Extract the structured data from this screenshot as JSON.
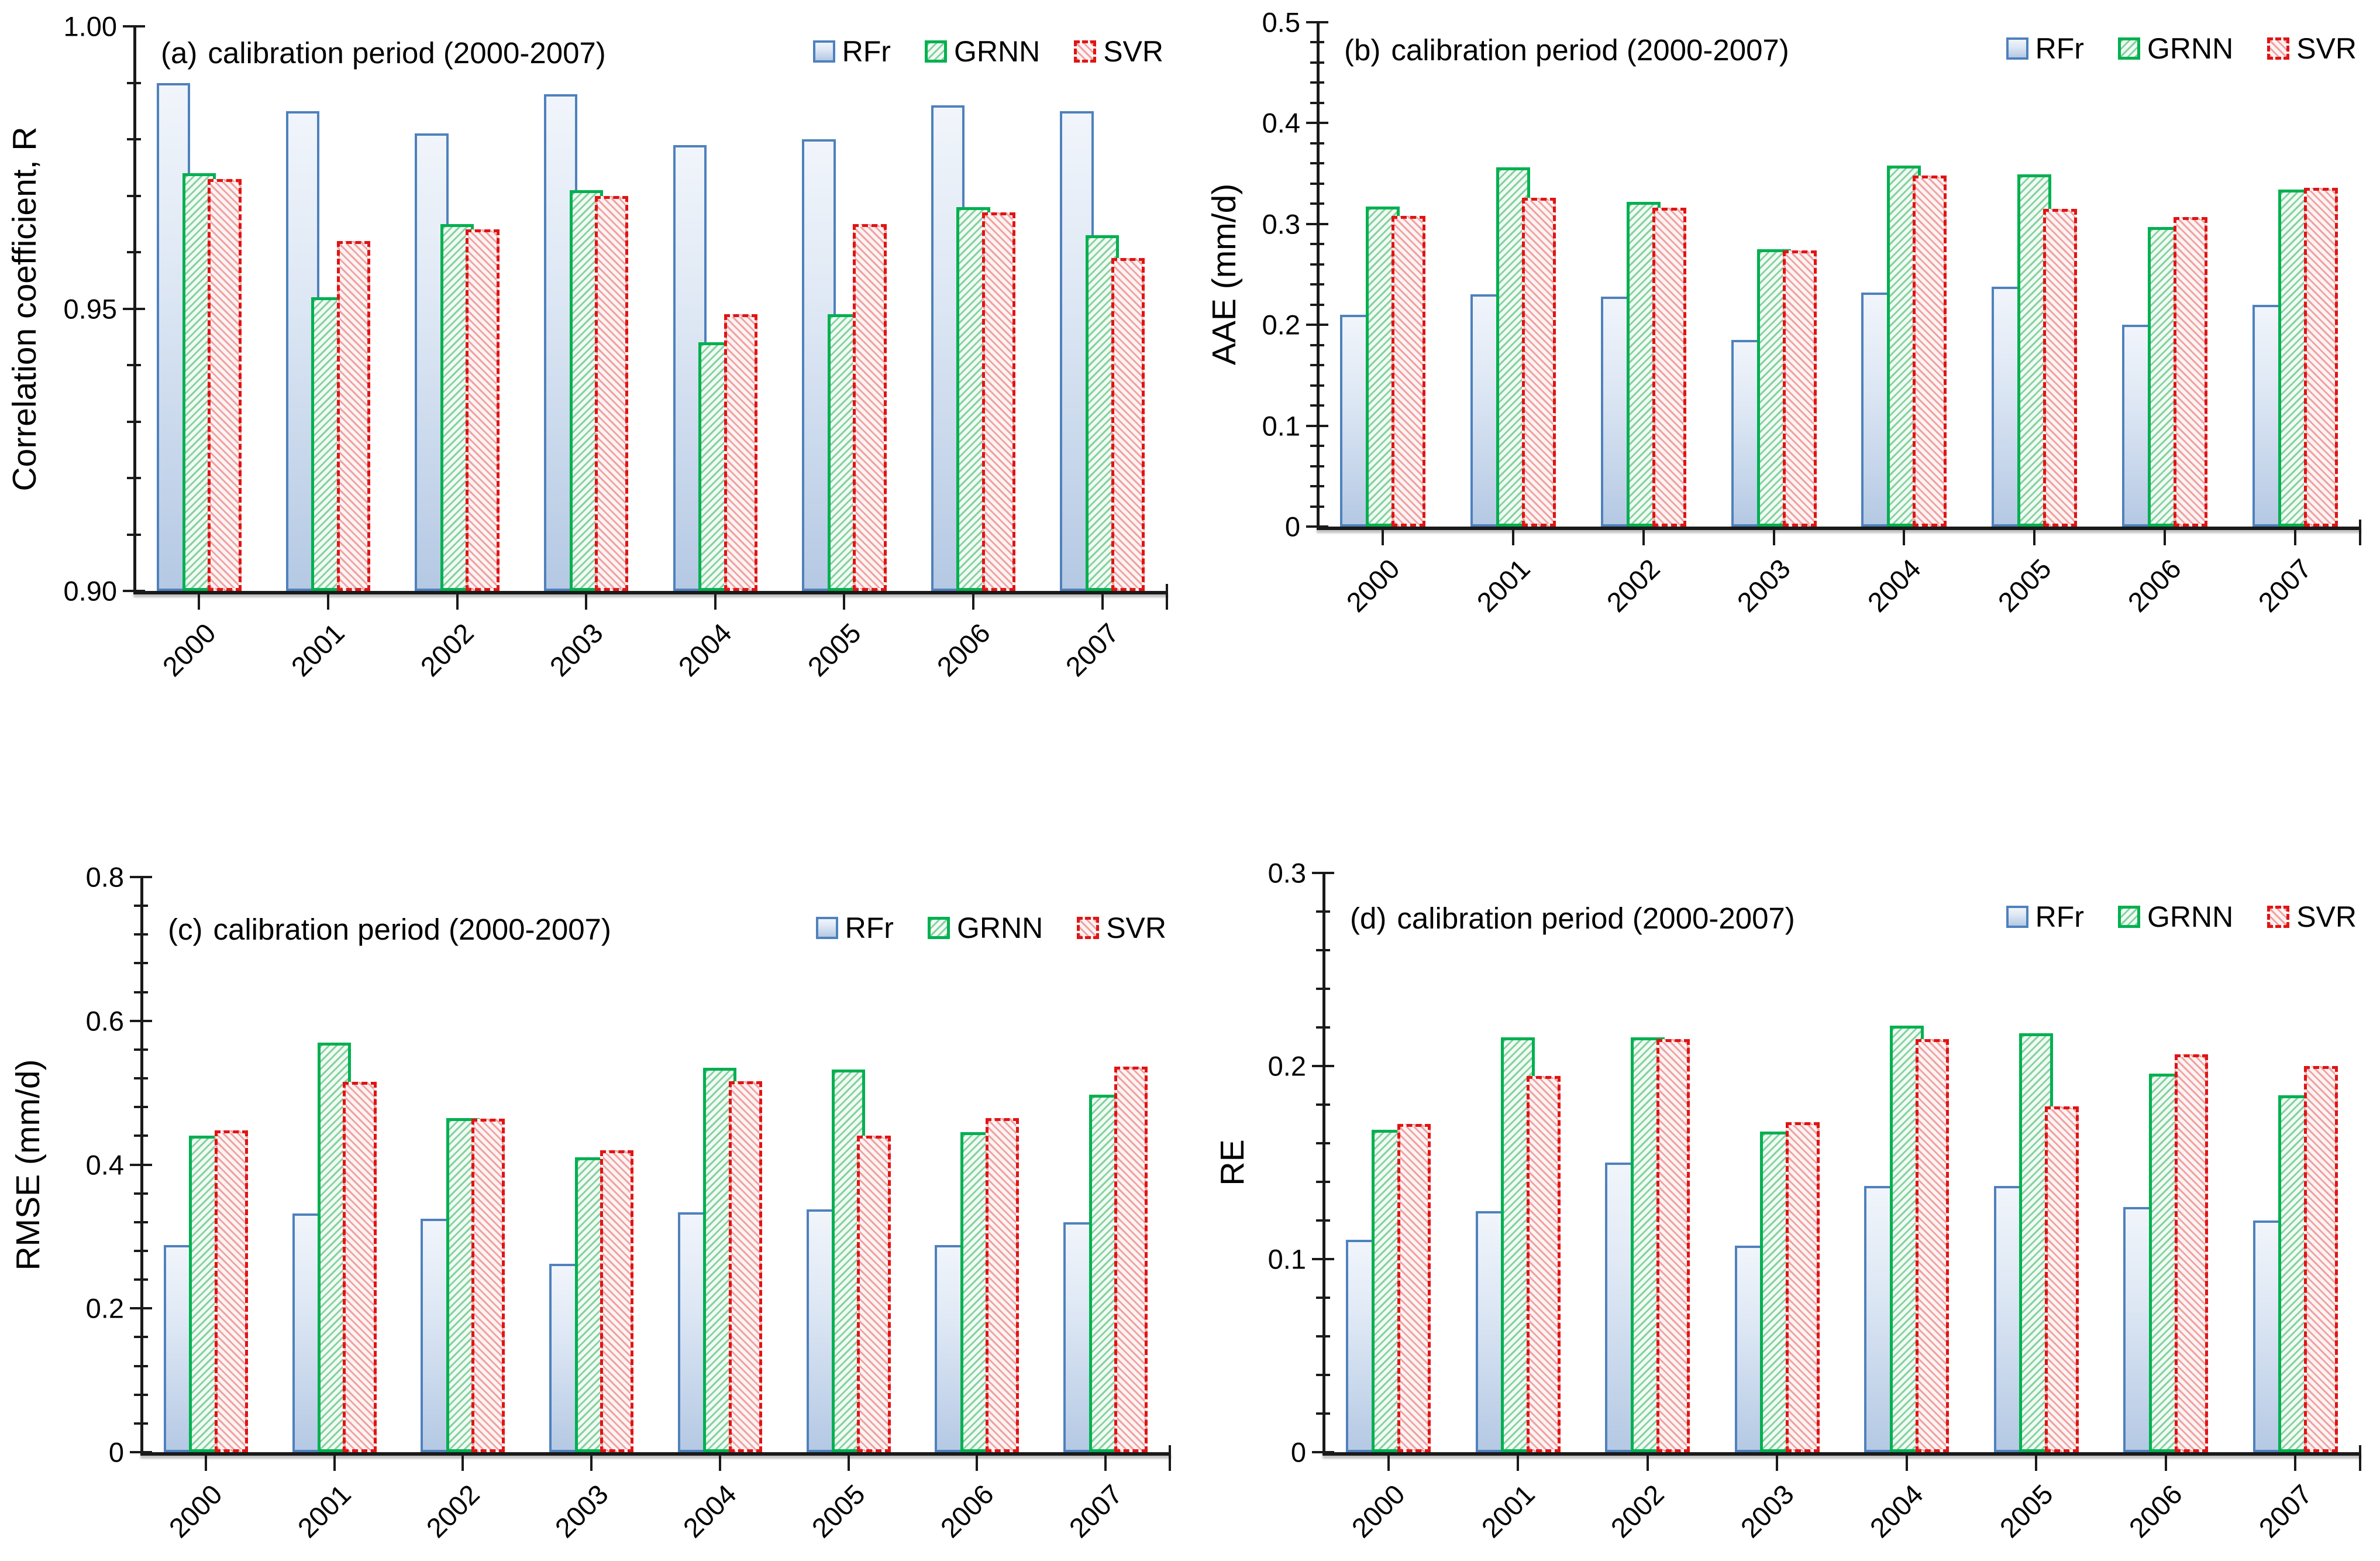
{
  "figure": {
    "background": "#ffffff",
    "text_color": "#000000",
    "axis_color": "#1a1a1a"
  },
  "series_styles": [
    {
      "name": "RFr",
      "border": "#4f81bd",
      "border_style": "solid",
      "fill": "blue-gradient",
      "fill_top": "#f1f5fb",
      "fill_bottom": "#b5c9e4"
    },
    {
      "name": "GRNN",
      "border": "#00b050",
      "border_style": "solid",
      "fill": "green-diagonal-hatch",
      "hatch_color": "#86d19e",
      "hatch_bg": "#f1faf4"
    },
    {
      "name": "SVR",
      "border": "#e01414",
      "border_style": "dashed",
      "fill": "red-diagonal-hatch",
      "hatch_color": "#efa2a2",
      "hatch_bg": "#fdf3f3"
    }
  ],
  "chart_data": [
    {
      "panel": "a",
      "type": "bar",
      "label": "(a)",
      "title": "calibration period (2000-2007)",
      "ylabel": "Correlation coefficient, R",
      "xlabel": "",
      "ylim": [
        0.9,
        1.0
      ],
      "ytick_values": [
        0.9,
        0.95,
        1.0
      ],
      "ytick_labels": [
        "0.90",
        "0.95",
        "1.00"
      ],
      "minor_tick_step": 0.01,
      "grid": false,
      "legend_position": "top-right",
      "categories": [
        "2000",
        "2001",
        "2002",
        "2003",
        "2004",
        "2005",
        "2006",
        "2007"
      ],
      "series": [
        {
          "name": "RFr",
          "values": [
            0.99,
            0.985,
            0.981,
            0.988,
            0.979,
            0.98,
            0.986,
            0.985
          ]
        },
        {
          "name": "GRNN",
          "values": [
            0.974,
            0.952,
            0.965,
            0.971,
            0.944,
            0.949,
            0.968,
            0.963
          ]
        },
        {
          "name": "SVR",
          "values": [
            0.973,
            0.962,
            0.964,
            0.97,
            0.949,
            0.965,
            0.967,
            0.959
          ]
        }
      ]
    },
    {
      "panel": "b",
      "type": "bar",
      "label": "(b)",
      "title": "calibration period (2000-2007)",
      "ylabel": "AAE (mm/d)",
      "xlabel": "",
      "ylim": [
        0,
        0.5
      ],
      "ytick_values": [
        0,
        0.1,
        0.2,
        0.3,
        0.4,
        0.5
      ],
      "ytick_labels": [
        "0",
        "0.1",
        "0.2",
        "0.3",
        "0.4",
        "0.5"
      ],
      "minor_tick_step": 0.02,
      "grid": false,
      "legend_position": "top-right",
      "categories": [
        "2000",
        "2001",
        "2002",
        "2003",
        "2004",
        "2005",
        "2006",
        "2007"
      ],
      "series": [
        {
          "name": "RFr",
          "values": [
            0.21,
            0.23,
            0.228,
            0.185,
            0.232,
            0.238,
            0.2,
            0.22
          ]
        },
        {
          "name": "GRNN",
          "values": [
            0.317,
            0.356,
            0.322,
            0.275,
            0.358,
            0.349,
            0.297,
            0.334
          ]
        },
        {
          "name": "SVR",
          "values": [
            0.308,
            0.326,
            0.316,
            0.274,
            0.348,
            0.315,
            0.307,
            0.336
          ]
        }
      ]
    },
    {
      "panel": "c",
      "type": "bar",
      "label": "(c)",
      "title": "calibration period (2000-2007)",
      "ylabel": "RMSE (mm/d)",
      "xlabel": "",
      "ylim": [
        0,
        0.8
      ],
      "ytick_values": [
        0,
        0.2,
        0.4,
        0.6,
        0.8
      ],
      "ytick_labels": [
        "0",
        "0.2",
        "0.4",
        "0.6",
        "0.8"
      ],
      "minor_tick_step": 0.04,
      "grid": false,
      "legend_position": "top-right",
      "categories": [
        "2000",
        "2001",
        "2002",
        "2003",
        "2004",
        "2005",
        "2006",
        "2007"
      ],
      "series": [
        {
          "name": "RFr",
          "values": [
            0.288,
            0.332,
            0.325,
            0.262,
            0.334,
            0.338,
            0.288,
            0.32
          ]
        },
        {
          "name": "GRNN",
          "values": [
            0.44,
            0.57,
            0.465,
            0.41,
            0.535,
            0.532,
            0.445,
            0.497
          ]
        },
        {
          "name": "SVR",
          "values": [
            0.448,
            0.515,
            0.464,
            0.42,
            0.516,
            0.44,
            0.465,
            0.536
          ]
        }
      ]
    },
    {
      "panel": "d",
      "type": "bar",
      "label": "(d)",
      "title": "calibration period (2000-2007)",
      "ylabel": "RE",
      "xlabel": "",
      "ylim": [
        0,
        0.3
      ],
      "ytick_values": [
        0,
        0.1,
        0.2,
        0.3
      ],
      "ytick_labels": [
        "0",
        "0.1",
        "0.2",
        "0.3"
      ],
      "minor_tick_step": 0.02,
      "grid": false,
      "legend_position": "top-right",
      "categories": [
        "2000",
        "2001",
        "2002",
        "2003",
        "2004",
        "2005",
        "2006",
        "2007"
      ],
      "series": [
        {
          "name": "RFr",
          "values": [
            0.11,
            0.125,
            0.15,
            0.107,
            0.138,
            0.138,
            0.127,
            0.12
          ]
        },
        {
          "name": "GRNN",
          "values": [
            0.167,
            0.215,
            0.215,
            0.166,
            0.221,
            0.217,
            0.196,
            0.185
          ]
        },
        {
          "name": "SVR",
          "values": [
            0.17,
            0.195,
            0.214,
            0.171,
            0.214,
            0.179,
            0.206,
            0.2
          ]
        }
      ]
    }
  ]
}
